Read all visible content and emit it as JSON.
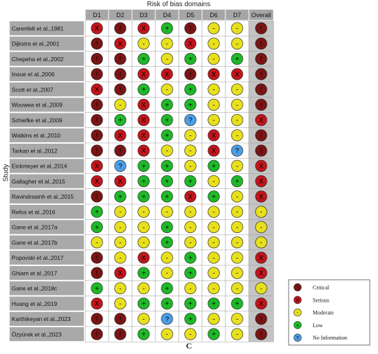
{
  "title": "Risk of bias domains",
  "caption": "C",
  "ylabel": "Study",
  "domains": [
    "D1",
    "D2",
    "D3",
    "D4",
    "D5",
    "D6",
    "D7",
    "Overall"
  ],
  "symbols": {
    "critical": {
      "glyph": "!",
      "color": "#7a1515"
    },
    "serious": {
      "glyph": "X",
      "color": "#c3151b"
    },
    "moderate": {
      "glyph": "-",
      "color": "#e8e01c"
    },
    "low": {
      "glyph": "+",
      "color": "#1fb828"
    },
    "noinfo": {
      "glyph": "?",
      "color": "#4d9ee8"
    }
  },
  "legend": [
    {
      "key": "critical",
      "label": "Critical"
    },
    {
      "key": "serious",
      "label": "Serious"
    },
    {
      "key": "moderate",
      "label": "Moderate"
    },
    {
      "key": "low",
      "label": "Low"
    },
    {
      "key": "noinfo",
      "label": "No Information"
    }
  ],
  "studies": [
    {
      "name": "Carenfelt et al.,1981",
      "ratings": [
        "serious",
        "critical",
        "serious",
        "low",
        "critical",
        "moderate",
        "moderate",
        "critical"
      ]
    },
    {
      "name": "Dijkstra et al.,2001",
      "ratings": [
        "critical",
        "serious",
        "moderate",
        "moderate",
        "serious",
        "moderate",
        "moderate",
        "critical"
      ]
    },
    {
      "name": "Chepeha et al.,2002",
      "ratings": [
        "critical",
        "critical",
        "low",
        "moderate",
        "low",
        "moderate",
        "low",
        "critical"
      ]
    },
    {
      "name": "Inoue et al.,2006",
      "ratings": [
        "critical",
        "critical",
        "serious",
        "serious",
        "critical",
        "serious",
        "serious",
        "critical"
      ]
    },
    {
      "name": "Scott et al.,2007",
      "ratings": [
        "serious",
        "critical",
        "low",
        "moderate",
        "low",
        "moderate",
        "moderate",
        "critical"
      ]
    },
    {
      "name": "Wouwea et al.,2009",
      "ratings": [
        "critical",
        "moderate",
        "serious",
        "low",
        "low",
        "moderate",
        "moderate",
        "critical"
      ]
    },
    {
      "name": "Schiefke et al.,2009",
      "ratings": [
        "critical",
        "low",
        "serious",
        "low",
        "noinfo",
        "moderate",
        "moderate",
        "serious"
      ]
    },
    {
      "name": "Watkins et al.,2010",
      "ratings": [
        "critical",
        "serious",
        "serious",
        "low",
        "moderate",
        "serious",
        "moderate",
        "critical"
      ]
    },
    {
      "name": "Tarkan et al.,2012",
      "ratings": [
        "critical",
        "critical",
        "serious",
        "moderate",
        "moderate",
        "serious",
        "noinfo",
        "critical"
      ]
    },
    {
      "name": "Eickmeyer et al.,2014",
      "ratings": [
        "serious",
        "noinfo",
        "low",
        "low",
        "moderate",
        "low",
        "moderate",
        "serious"
      ]
    },
    {
      "name": "Gallagher et al.,2015",
      "ratings": [
        "serious",
        "serious",
        "low",
        "low",
        "low",
        "moderate",
        "low",
        "serious"
      ]
    },
    {
      "name": "Ravindrasinh et al.,2015",
      "ratings": [
        "critical",
        "low",
        "low",
        "low",
        "serious",
        "low",
        "moderate",
        "serious"
      ]
    },
    {
      "name": "Refos et al.,2016",
      "ratings": [
        "low",
        "moderate",
        "moderate",
        "moderate",
        "moderate",
        "moderate",
        "moderate",
        "moderate"
      ]
    },
    {
      "name": "Gane et al.,2017a",
      "ratings": [
        "low",
        "moderate",
        "moderate",
        "low",
        "moderate",
        "moderate",
        "moderate",
        "moderate"
      ]
    },
    {
      "name": "Gane et al.,2017b",
      "ratings": [
        "moderate",
        "moderate",
        "moderate",
        "low",
        "moderate",
        "moderate",
        "moderate",
        "moderate"
      ]
    },
    {
      "name": "Popovski et al.,2017",
      "ratings": [
        "critical",
        "moderate",
        "serious",
        "moderate",
        "low",
        "moderate",
        "moderate",
        "serious"
      ]
    },
    {
      "name": "Ghiam et al.,2017",
      "ratings": [
        "critical",
        "serious",
        "low",
        "moderate",
        "low",
        "moderate",
        "moderate",
        "serious"
      ]
    },
    {
      "name": "Gane et al.,2018c",
      "ratings": [
        "low",
        "moderate",
        "moderate",
        "low",
        "moderate",
        "moderate",
        "moderate",
        "moderate"
      ]
    },
    {
      "name": "Huang et al.,2019",
      "ratings": [
        "serious",
        "moderate",
        "low",
        "low",
        "low",
        "low",
        "low",
        "serious"
      ]
    },
    {
      "name": "Karthikeyan et al.,2023",
      "ratings": [
        "critical",
        "critical",
        "moderate",
        "noinfo",
        "low",
        "moderate",
        "moderate",
        "critical"
      ]
    },
    {
      "name": "Özyürek et al.,2023",
      "ratings": [
        "critical",
        "critical",
        "low",
        "moderate",
        "moderate",
        "low",
        "moderate",
        "critical"
      ]
    }
  ]
}
